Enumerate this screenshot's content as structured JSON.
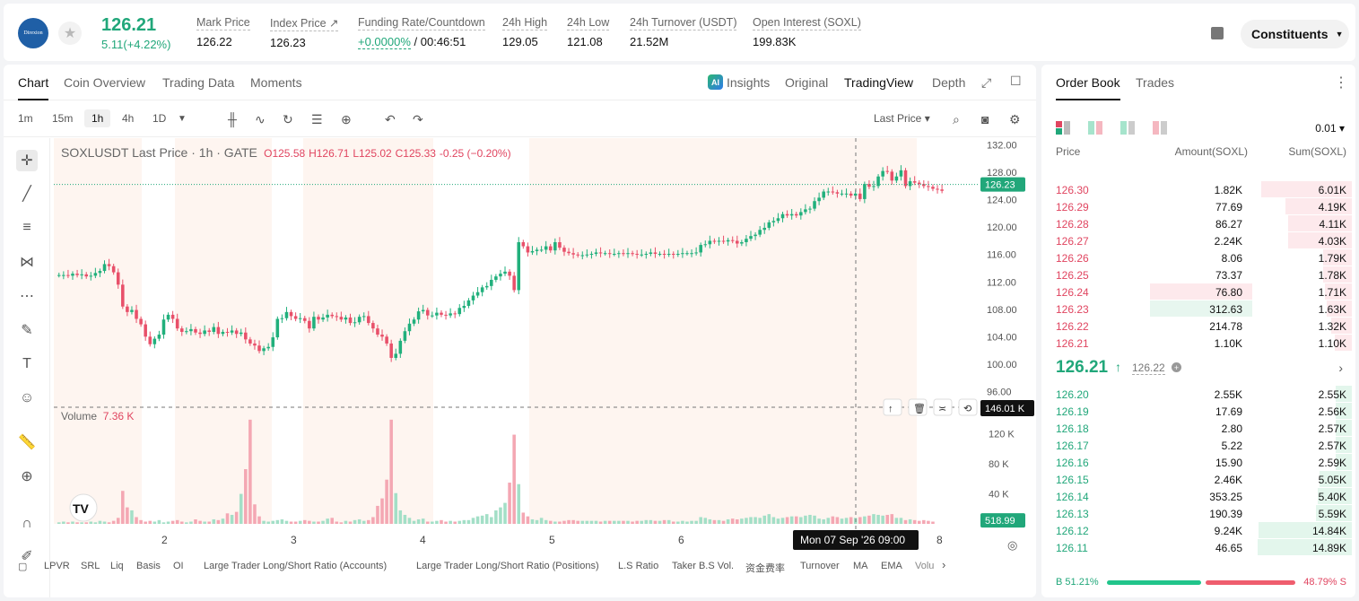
{
  "header": {
    "logo_text": "Direxion",
    "price": "126.21",
    "change": "5.11(+4.22%)",
    "stats": [
      {
        "label": "Mark Price",
        "value": "126.22"
      },
      {
        "label": "Index Price ↗",
        "value": "126.23"
      },
      {
        "label": "Funding Rate/Countdown",
        "value_green": "+0.0000%",
        "value": " / 00:46:51"
      },
      {
        "label": "24h High",
        "value": "129.05"
      },
      {
        "label": "24h Low",
        "value": "121.08"
      },
      {
        "label": "24h Turnover (USDT)",
        "value": "21.52M"
      },
      {
        "label": "Open Interest (SOXL)",
        "value": "199.83K"
      }
    ],
    "constituents_label": "Constituents"
  },
  "chart_tabs": [
    "Chart",
    "Coin Overview",
    "Trading Data",
    "Moments"
  ],
  "right_tabs": {
    "insights": "Insights",
    "original": "Original",
    "tradingview": "TradingView",
    "depth": "Depth"
  },
  "intervals": [
    "1m",
    "15m",
    "1h",
    "4h",
    "1D"
  ],
  "price_type": "Last Price",
  "legend": {
    "title": "SOXLUSDT Last Price · 1h · GATE",
    "o": "O125.58",
    "h": "H126.71",
    "l": "L125.02",
    "c": "C125.33",
    "chg": "-0.25 (−0.20%)"
  },
  "volume_legend": {
    "label": "Volume",
    "value": "7.36 K"
  },
  "chart_data": {
    "type": "candlestick",
    "symbol": "SOXLUSDT",
    "interval": "1h",
    "y_ticks": [
      132.0,
      128.0,
      124.0,
      120.0,
      116.0,
      112.0,
      108.0,
      104.0,
      100.0,
      96.0
    ],
    "ylim": [
      95,
      133
    ],
    "last_price_label": "126.23",
    "volume_ticks": [
      "120 K",
      "80 K",
      "40 K"
    ],
    "volume_cursor_label": "146.01 K",
    "volume_last_label": "518.99",
    "x_ticks": [
      "2",
      "3",
      "4",
      "5",
      "6",
      "8"
    ],
    "crosshair_time": "Mon 07 Sep '26   09:00",
    "closes": [
      113.0,
      113.0,
      112.9,
      113.2,
      113.0,
      113.1,
      112.8,
      112.9,
      113.3,
      113.6,
      114.6,
      114.3,
      113.4,
      111.6,
      108.4,
      107.6,
      107.9,
      106.6,
      105.8,
      104.0,
      102.9,
      103.7,
      104.3,
      106.5,
      107.2,
      106.6,
      105.2,
      104.7,
      104.8,
      105.1,
      104.6,
      104.4,
      104.9,
      104.7,
      105.4,
      104.4,
      104.7,
      104.6,
      104.9,
      104.4,
      104.6,
      103.6,
      103.0,
      102.7,
      101.9,
      102.3,
      102.5,
      103.9,
      106.6,
      106.7,
      107.6,
      107.0,
      106.6,
      106.7,
      106.3,
      105.2,
      106.9,
      106.5,
      106.8,
      107.2,
      107.0,
      106.9,
      106.5,
      106.8,
      106.0,
      106.1,
      106.9,
      107.0,
      106.0,
      105.2,
      104.3,
      104.0,
      103.0,
      100.9,
      101.5,
      103.4,
      104.8,
      105.9,
      106.5,
      107.7,
      107.9,
      107.1,
      107.1,
      107.5,
      107.2,
      107.1,
      107.4,
      107.3,
      108.2,
      108.5,
      109.3,
      110.0,
      110.5,
      111.2,
      111.4,
      112.3,
      112.8,
      113.2,
      113.5,
      112.9,
      110.8,
      117.8,
      117.2,
      116.3,
      116.5,
      116.7,
      116.7,
      117.2,
      116.6,
      117.8,
      117.0,
      116.4,
      116.2,
      116.0,
      115.9,
      115.9,
      116.0,
      116.1,
      116.3,
      116.2,
      116.2,
      116.1,
      116.1,
      116.2,
      116.1,
      116.2,
      116.1,
      116.0,
      116.0,
      116.1,
      116.3,
      116.1,
      116.1,
      116.0,
      116.1,
      116.0,
      116.1,
      116.2,
      116.2,
      116.2,
      116.3,
      117.4,
      117.5,
      118.0,
      117.9,
      118.0,
      117.9,
      118.1,
      118.0,
      117.6,
      117.8,
      118.3,
      118.7,
      118.9,
      119.6,
      119.9,
      120.7,
      120.9,
      121.3,
      121.9,
      121.7,
      121.9,
      121.7,
      122.2,
      122.6,
      122.7,
      123.8,
      124.3,
      125.2,
      125.2,
      125.1,
      124.9,
      124.9,
      124.9,
      124.6,
      124.9,
      124.1,
      126.3,
      125.9,
      126.0,
      127.4,
      128.2,
      128.1,
      126.8,
      127.4,
      128.3,
      126.0,
      126.7,
      126.5,
      126.3,
      126.0,
      125.9,
      125.6,
      125.5,
      125.3
    ],
    "volumes": [
      2,
      3,
      2,
      3,
      2,
      2,
      2,
      3,
      2,
      4,
      3,
      2,
      4,
      8,
      44,
      22,
      18,
      9,
      5,
      3,
      4,
      3,
      5,
      2,
      3,
      4,
      5,
      3,
      2,
      3,
      6,
      4,
      3,
      3,
      6,
      5,
      7,
      14,
      12,
      16,
      40,
      73,
      139,
      26,
      10,
      4,
      3,
      4,
      5,
      6,
      4,
      3,
      3,
      4,
      5,
      4,
      3,
      3,
      4,
      7,
      8,
      3,
      2,
      4,
      3,
      5,
      6,
      4,
      5,
      9,
      24,
      34,
      59,
      139,
      41,
      18,
      12,
      8,
      4,
      6,
      7,
      3,
      3,
      4,
      5,
      3,
      4,
      3,
      4,
      5,
      5,
      8,
      10,
      11,
      13,
      9,
      18,
      22,
      28,
      55,
      119,
      53,
      15,
      10,
      6,
      5,
      8,
      5,
      4,
      3,
      3,
      4,
      5,
      5,
      4,
      4,
      4,
      4,
      4,
      3,
      4,
      4,
      4,
      4,
      4,
      4,
      3,
      4,
      4,
      5,
      5,
      4,
      4,
      5,
      5,
      3,
      3,
      4,
      3,
      4,
      4,
      9,
      8,
      6,
      5,
      5,
      4,
      6,
      7,
      6,
      7,
      8,
      9,
      9,
      8,
      11,
      13,
      9,
      7,
      8,
      9,
      10,
      10,
      9,
      11,
      12,
      11,
      7,
      6,
      8,
      10,
      9,
      7,
      8,
      9,
      8,
      9,
      10,
      11,
      13,
      12,
      11,
      12,
      13,
      8,
      8,
      5,
      6,
      5,
      4,
      5,
      4,
      3
    ]
  },
  "indicators": [
    "LPVR",
    "SRL",
    "Liq",
    "Basis",
    "OI",
    "Large Trader Long/Short Ratio (Accounts)",
    "Large Trader Long/Short Ratio (Positions)",
    "L.S Ratio",
    "Taker B.S Vol.",
    "资金费率",
    "Turnover",
    "MA",
    "EMA",
    "Volu"
  ],
  "orderbook": {
    "tabs": [
      "Order Book",
      "Trades"
    ],
    "tick": "0.01",
    "headers": [
      "Price",
      "Amount(SOXL)",
      "Sum(SOXL)"
    ],
    "asks": [
      {
        "price": "126.30",
        "amount": "1.82K",
        "sum": "6.01K",
        "depth": 0.96,
        "abar": 0
      },
      {
        "price": "126.29",
        "amount": "77.69",
        "sum": "4.19K",
        "depth": 0.7,
        "abar": 0
      },
      {
        "price": "126.28",
        "amount": "86.27",
        "sum": "4.11K",
        "depth": 0.68,
        "abar": 0
      },
      {
        "price": "126.27",
        "amount": "2.24K",
        "sum": "4.03K",
        "depth": 0.68,
        "abar": 0
      },
      {
        "price": "126.26",
        "amount": "8.06",
        "sum": "1.79K",
        "depth": 0.3,
        "abar": 0
      },
      {
        "price": "126.25",
        "amount": "73.37",
        "sum": "1.78K",
        "depth": 0.3,
        "abar": 0
      },
      {
        "price": "126.24",
        "amount": "76.80",
        "sum": "1.71K",
        "depth": 0.29,
        "abar": 0.25
      },
      {
        "price": "126.23",
        "amount": "312.63",
        "sum": "1.63K",
        "depth": 0.27,
        "abar": 1
      },
      {
        "price": "126.22",
        "amount": "214.78",
        "sum": "1.32K",
        "depth": 0.22,
        "abar": 0
      },
      {
        "price": "126.21",
        "amount": "1.10K",
        "sum": "1.10K",
        "depth": 0.18,
        "abar": 0
      }
    ],
    "mid_price": "126.21",
    "mid_index": "126.22",
    "bids": [
      {
        "price": "126.20",
        "amount": "2.55K",
        "sum": "2.55K",
        "depth": 0.17
      },
      {
        "price": "126.19",
        "amount": "17.69",
        "sum": "2.56K",
        "depth": 0.17
      },
      {
        "price": "126.18",
        "amount": "2.80",
        "sum": "2.57K",
        "depth": 0.17
      },
      {
        "price": "126.17",
        "amount": "5.22",
        "sum": "2.57K",
        "depth": 0.17
      },
      {
        "price": "126.16",
        "amount": "15.90",
        "sum": "2.59K",
        "depth": 0.17
      },
      {
        "price": "126.15",
        "amount": "2.46K",
        "sum": "5.05K",
        "depth": 0.34
      },
      {
        "price": "126.14",
        "amount": "353.25",
        "sum": "5.40K",
        "depth": 0.36
      },
      {
        "price": "126.13",
        "amount": "190.39",
        "sum": "5.59K",
        "depth": 0.38
      },
      {
        "price": "126.12",
        "amount": "9.24K",
        "sum": "14.84K",
        "depth": 0.99
      },
      {
        "price": "126.11",
        "amount": "46.65",
        "sum": "14.89K",
        "depth": 1.0
      }
    ],
    "buy_ratio": "51.21%",
    "sell_ratio": "48.79%",
    "buy_label": "B",
    "sell_label": "S"
  }
}
